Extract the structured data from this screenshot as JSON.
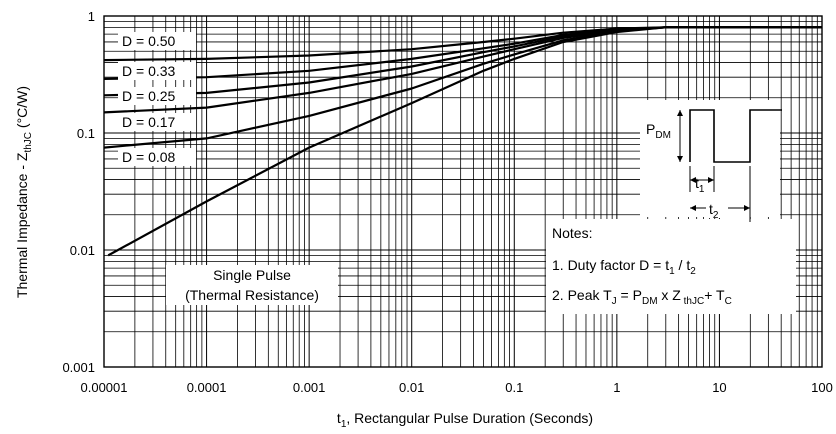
{
  "chart_data": {
    "type": "line",
    "xscale": "log",
    "yscale": "log",
    "xlim": [
      1e-05,
      100
    ],
    "ylim": [
      0.001,
      1
    ],
    "xticks": [
      "0.00001",
      "0.0001",
      "0.001",
      "0.01",
      "0.1",
      "1",
      "10",
      "100"
    ],
    "yticks": [
      "0.001",
      "0.01",
      "0.1",
      "1"
    ],
    "xlabel": {
      "main": "t",
      "sub": "1",
      "rest": ",  Rectangular Pulse Duration (Seconds)"
    },
    "ylabel": {
      "main": "Thermal Impedance - Z",
      "sub": "thJC",
      "rest": "  (°C/W)"
    },
    "grid": true,
    "series": [
      {
        "name": "D = 0.50",
        "x": [
          1e-05,
          0.0001,
          0.001,
          0.01,
          0.05,
          0.1,
          0.3,
          1,
          3,
          100
        ],
        "y": [
          0.42,
          0.43,
          0.46,
          0.52,
          0.6,
          0.64,
          0.72,
          0.78,
          0.8,
          0.8
        ]
      },
      {
        "name": "D = 0.33",
        "x": [
          1e-05,
          0.0001,
          0.001,
          0.01,
          0.05,
          0.1,
          0.3,
          1,
          3,
          100
        ],
        "y": [
          0.29,
          0.3,
          0.34,
          0.43,
          0.53,
          0.58,
          0.69,
          0.77,
          0.8,
          0.8
        ]
      },
      {
        "name": "D = 0.25",
        "x": [
          1e-05,
          0.0001,
          0.001,
          0.01,
          0.05,
          0.1,
          0.3,
          1,
          3,
          100
        ],
        "y": [
          0.21,
          0.22,
          0.27,
          0.37,
          0.49,
          0.55,
          0.67,
          0.76,
          0.8,
          0.8
        ]
      },
      {
        "name": "D = 0.17",
        "x": [
          1e-05,
          0.0001,
          0.001,
          0.01,
          0.05,
          0.1,
          0.3,
          1,
          3,
          100
        ],
        "y": [
          0.15,
          0.165,
          0.22,
          0.32,
          0.45,
          0.52,
          0.65,
          0.75,
          0.8,
          0.8
        ]
      },
      {
        "name": "D = 0.08",
        "x": [
          1e-05,
          0.0001,
          0.001,
          0.01,
          0.05,
          0.1,
          0.3,
          1,
          3,
          100
        ],
        "y": [
          0.075,
          0.09,
          0.14,
          0.24,
          0.39,
          0.47,
          0.62,
          0.74,
          0.8,
          0.8
        ]
      },
      {
        "name": "Single Pulse (Thermal Resistance)",
        "x": [
          1.1e-05,
          0.0001,
          0.001,
          0.01,
          0.05,
          0.1,
          0.3,
          1,
          3,
          100
        ],
        "y": [
          0.009,
          0.026,
          0.075,
          0.18,
          0.34,
          0.43,
          0.6,
          0.73,
          0.8,
          0.8
        ]
      }
    ],
    "series_labels": [
      {
        "text": "D = 0.50"
      },
      {
        "text": "D = 0.33"
      },
      {
        "text": "D = 0.25"
      },
      {
        "text": "D = 0.17"
      },
      {
        "text": "D = 0.08"
      }
    ],
    "single_pulse_label": [
      "Single Pulse",
      "(Thermal Resistance)"
    ],
    "notes": {
      "title": "Notes:",
      "line1": {
        "a": "1. Duty factor D =  t",
        "b": "1",
        "c": " / t",
        "d": "2"
      },
      "line2": {
        "a": "2. Peak T",
        "b": "J",
        "c": " = P",
        "d": "DM",
        "e": " x Z",
        "f": " thJC",
        "g": "+ T",
        "h": "C"
      }
    },
    "inset": {
      "pdm": {
        "main": "P",
        "sub": "DM"
      },
      "t1": {
        "main": "t",
        "sub": "1"
      },
      "t2": {
        "main": "t",
        "sub": "2"
      }
    }
  }
}
